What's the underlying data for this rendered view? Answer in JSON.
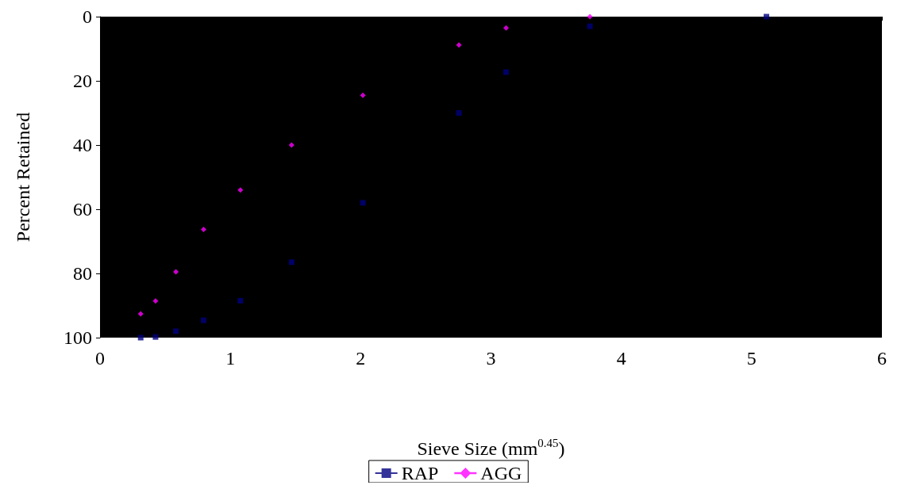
{
  "chart_data": {
    "type": "scatter",
    "xlabel": "Sieve Size (mm$^{0.45}$)",
    "ylabel": "Percent Retained",
    "xlim": [
      0,
      6
    ],
    "xticks": [
      0,
      1,
      2,
      3,
      4,
      5,
      6
    ],
    "ylim": [
      100,
      0
    ],
    "yticks": [
      0,
      20,
      40,
      60,
      80,
      100
    ],
    "grid": false,
    "legend": "bottom",
    "series": [
      {
        "name": "RAP",
        "color": "#000080",
        "marker": "square",
        "line_style": "solid",
        "x": [
          0.312,
          0.426,
          0.582,
          0.795,
          1.077,
          1.47,
          2.017,
          2.754,
          3.116,
          3.759,
          5.114
        ],
        "values": [
          100,
          99.8,
          98,
          94.6,
          88.5,
          76.5,
          58,
          30,
          17.3,
          3,
          0
        ]
      },
      {
        "name": "AGG",
        "color": "#ff00ff",
        "marker": "diamond",
        "line_style": "dashed",
        "x": [
          0.312,
          0.426,
          0.582,
          0.795,
          1.077,
          1.47,
          2.017,
          2.754,
          3.116,
          3.759
        ],
        "values": [
          92.6,
          88.6,
          79.5,
          66.3,
          54,
          40,
          24.5,
          8.8,
          3.5,
          0
        ]
      }
    ]
  }
}
